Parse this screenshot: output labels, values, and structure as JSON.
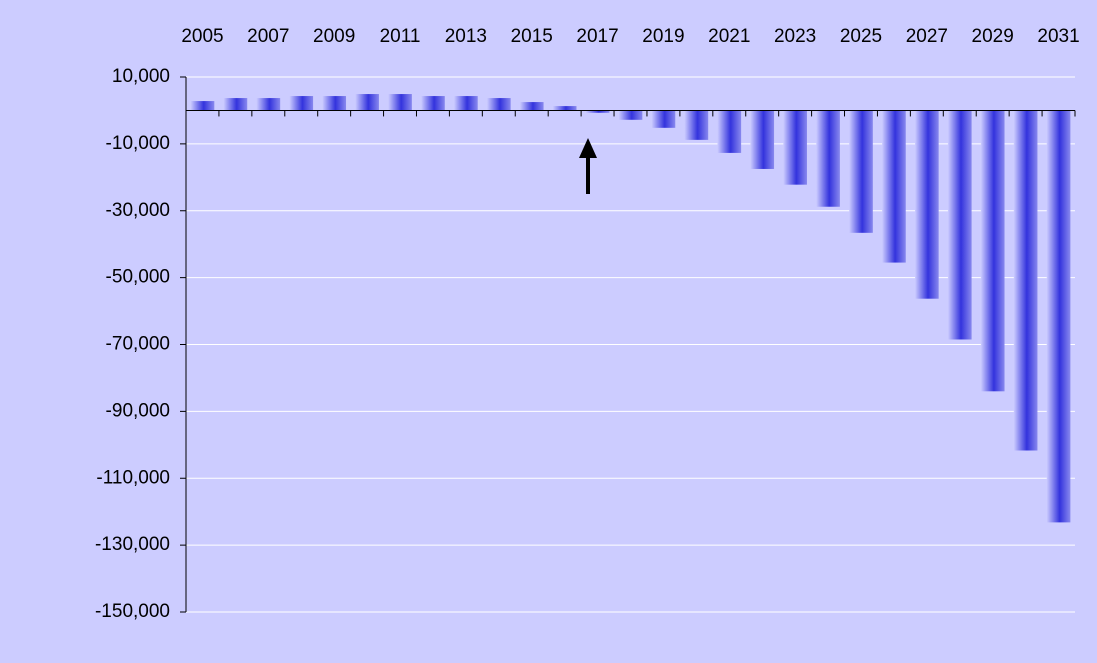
{
  "chart_data": {
    "type": "bar",
    "categories": [
      "2005",
      null,
      "2007",
      null,
      "2009",
      null,
      "2011",
      null,
      "2013",
      null,
      "2015",
      null,
      "2017",
      null,
      "2019",
      null,
      "2021",
      null,
      "2023",
      null,
      "2025",
      null,
      "2027",
      null,
      "2029",
      null,
      "2031"
    ],
    "values": [
      2800,
      3700,
      3700,
      4300,
      4300,
      4900,
      4900,
      4300,
      4300,
      3700,
      2500,
      1300,
      -700,
      -2800,
      -5200,
      -8800,
      -12700,
      -17500,
      -22200,
      -28800,
      -36600,
      -45500,
      -56300,
      -68500,
      -84000,
      -101700,
      -123200
    ],
    "color": "#3333dd",
    "ylim": [
      -150000,
      10000
    ],
    "yticks": [
      {
        "value": -150000,
        "label": "-150,000"
      },
      {
        "value": -130000,
        "label": "-130,000"
      },
      {
        "value": -110000,
        "label": "-110,000"
      },
      {
        "value": -90000,
        "label": "-90,000"
      },
      {
        "value": -70000,
        "label": "-70,000"
      },
      {
        "value": -50000,
        "label": "-50,000"
      },
      {
        "value": -30000,
        "label": "-30,000"
      },
      {
        "value": -10000,
        "label": "-10,000"
      },
      {
        "value": 10000,
        "label": "10,000"
      }
    ],
    "grid": true
  }
}
